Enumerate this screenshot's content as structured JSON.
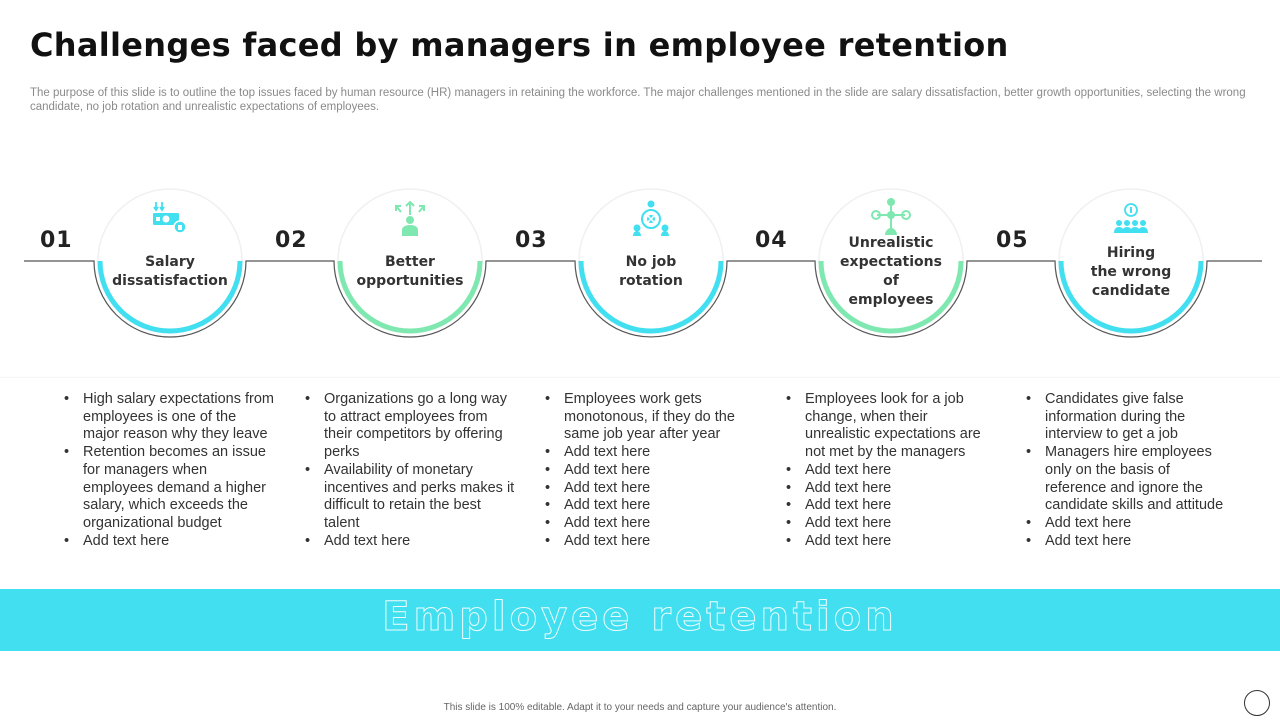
{
  "header": {
    "title": "Challenges faced by managers in employee retention",
    "description": "The purpose of this slide is to outline the top issues faced by human resource (HR) managers in retaining the workforce. The major challenges mentioned in the slide are salary dissatisfaction, better growth opportunities, selecting the wrong candidate, no job rotation and unrealistic expectations of employees."
  },
  "colors": {
    "cyan": "#41dfef",
    "mint": "#7fe8b0",
    "band": "#41dfef"
  },
  "steps": [
    {
      "number": "01",
      "icon": "salary-money-icon",
      "color": "cyan",
      "label_lines": [
        "Salary",
        "dissatisfaction"
      ],
      "bullets": [
        "High salary expectations from employees is one of the major reason why they leave",
        "Retention becomes an issue for managers when employees demand a higher salary, which exceeds the organizational budget",
        "Add text here"
      ]
    },
    {
      "number": "02",
      "icon": "growth-person-icon",
      "color": "mint",
      "label_lines": [
        "Better",
        "opportunities"
      ],
      "bullets": [
        "Organizations go a long way to attract employees from their competitors by offering perks",
        "Availability  of monetary incentives and perks makes it difficult to retain the best talent",
        "Add text here"
      ]
    },
    {
      "number": "03",
      "icon": "rotation-network-icon",
      "color": "cyan",
      "label_lines": [
        "No job",
        "rotation"
      ],
      "bullets": [
        "Employees work gets monotonous, if they do the same job year after year",
        "Add text here",
        "Add text here",
        "Add text here",
        "Add text here",
        "Add text here",
        "Add text here"
      ]
    },
    {
      "number": "04",
      "icon": "expectations-hierarchy-icon",
      "color": "mint",
      "label_lines": [
        "Unrealistic",
        "expectations",
        "of",
        "employees"
      ],
      "bullets": [
        "Employees look for a job change, when their unrealistic expectations are not met by the managers",
        "Add text here",
        "Add text here",
        "Add text here",
        "Add text here",
        "Add text here"
      ]
    },
    {
      "number": "05",
      "icon": "team-hiring-icon",
      "color": "cyan",
      "label_lines": [
        "Hiring",
        "the wrong",
        "candidate"
      ],
      "bullets": [
        "Candidates give false information during the interview to get a job",
        "Managers hire employees only on the basis of reference and ignore the candidate skills and attitude",
        "Add text here",
        "Add text here"
      ]
    }
  ],
  "band": {
    "text": "Employee retention"
  },
  "footer": {
    "text": "This slide is 100% editable. Adapt it to your needs and capture your audience's attention."
  }
}
